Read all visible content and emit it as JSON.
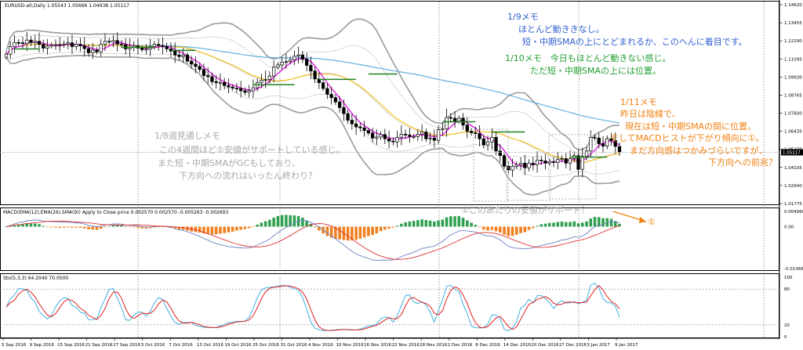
{
  "colors": {
    "bull": "#ffffff",
    "bear": "#000000",
    "sma_short": "#e020e0",
    "sma_mid": "#f0c020",
    "sma_long": "#60b0e0",
    "bb": "#9a9a9a",
    "hist_pos": "#30a050",
    "hist_neg": "#f08020",
    "stoch_main": "#40b0e0",
    "stoch_signal": "#e02020",
    "note_blue": "#3060d0",
    "note_green": "#20a030",
    "note_gray": "#a8a8a8",
    "note_orange": "#f08010",
    "level_green": "#208020"
  },
  "header": {
    "main": "EURUSD-a0,Daily  1.05543 1.05666 1.04938 1.05117",
    "macd": "MACD(EMA(12),EMA(26),SMA(9)) Apply to Close price 0.002570 0.002570 -0.005263 -0.002693",
    "stoch": "Sto(5,3,3) 64.2040 70.0500"
  },
  "notes": {
    "n19_title": "1/9メモ",
    "n19_l1": "ほとんど動ききなし。",
    "n19_l2": "短・中期SMAの上にとどまれるか、このへんに着目です。",
    "n110": "1/10メモ　今日もほとんど動きない感じ。",
    "n110_l2": "ただ短・中期SMAの上には位置。",
    "n111_title": "1/11メモ",
    "n111_l1": "昨日は陰線で、",
    "n111_l2": "現在は短・中期SMAの間に位置。",
    "n111_l3": "そしてMACDヒストが下がり傾向に①。",
    "n111_l4": "まだ方向感はつかみづらいですが、",
    "n111_l5": "下方向への前兆？",
    "n18_title": "1/8週見通しメモ",
    "n18_l1": "この4週間ほど①安値がサポートしている感じ。",
    "n18_l2": "また短・中期SMAがGCもしており、",
    "n18_l3": "下方向への流れはいったん終わり？",
    "support": "①このあたりの安値がサポート？",
    "macd_marker": "①"
  },
  "chart_data": {
    "type": "candlestick",
    "symbol": "EURUSD-a0",
    "timeframe": "Daily",
    "x_tick_labels": [
      "5 Sep 2016",
      "9 Sep 2016",
      "15 Sep 2016",
      "21 Sep 2016",
      "27 Sep 2016",
      "3 Oct 2016",
      "7 Oct 2016",
      "13 Oct 2016",
      "19 Oct 2016",
      "25 Oct 2016",
      "31 Oct 2016",
      "4 Nov 2016",
      "10 Nov 2016",
      "16 Nov 2016",
      "22 Nov 2016",
      "28 Nov 2016",
      "2 Dec 2016",
      "8 Dec 2016",
      "14 Dec 2016",
      "20 Dec 2016",
      "27 Dec 2016",
      "3 Jan 2017",
      "9 Jan 2017"
    ],
    "y_tick_labels": [
      "1.14620",
      "1.13455",
      "1.12290",
      "1.11095",
      "1.09930",
      "1.08765",
      "1.07600",
      "1.06435",
      "1.05270",
      "1.04105",
      "1.02940",
      "1.01775"
    ],
    "price_scale": [
      1.0175,
      1.148
    ],
    "current_price": "1.05117",
    "close": [
      1.1155,
      1.1205,
      1.1232,
      1.123,
      1.1225,
      1.1248,
      1.1232,
      1.124,
      1.122,
      1.1195,
      1.1208,
      1.1215,
      1.1218,
      1.1217,
      1.1222,
      1.123,
      1.1205,
      1.122,
      1.121,
      1.1192,
      1.1165,
      1.1182,
      1.117,
      1.122,
      1.124,
      1.1235,
      1.1245,
      1.1222,
      1.1218,
      1.119,
      1.12,
      1.121,
      1.1195,
      1.1185,
      1.1188,
      1.1205,
      1.122,
      1.1212,
      1.1205,
      1.119,
      1.1175,
      1.115,
      1.114,
      1.115,
      1.111,
      1.109,
      1.1075,
      1.1055,
      1.1015,
      1.1008,
      1.0975,
      1.0968,
      1.097,
      1.095,
      1.094,
      1.0932,
      1.093,
      1.0915,
      1.0905,
      1.0915,
      1.0935,
      1.097,
      1.0985,
      1.099,
      1.1012,
      1.107,
      1.1085,
      1.1102,
      1.1108,
      1.1118,
      1.1142,
      1.115,
      1.1122,
      1.1082,
      1.1045,
      1.0993,
      1.0968,
      1.093,
      1.0892,
      1.087,
      1.0842,
      1.0805,
      1.0765,
      1.0722,
      1.0698,
      1.0678,
      1.0672,
      1.0655,
      1.0638,
      1.0605,
      1.0612,
      1.0628,
      1.06,
      1.0585,
      1.058,
      1.061,
      1.063,
      1.0625,
      1.0615,
      1.0615,
      1.063,
      1.0645,
      1.06,
      1.0605,
      1.059,
      1.066,
      1.0665,
      1.074,
      1.0735,
      1.0715,
      1.0735,
      1.069,
      1.065,
      1.064,
      1.0635,
      1.06,
      1.056,
      1.058,
      1.061,
      1.052,
      1.049,
      1.042,
      1.0395,
      1.042,
      1.043,
      1.044,
      1.041,
      1.044,
      1.043,
      1.046,
      1.0455,
      1.044,
      1.045,
      1.0445,
      1.0465,
      1.047,
      1.044,
      1.047,
      1.049,
      1.04,
      1.0485,
      1.052,
      1.061,
      1.0605,
      1.0568,
      1.0552,
      1.06,
      1.0589,
      1.055,
      1.0512
    ],
    "macd_scale": [
      -0.01366,
      0.004968
    ],
    "macd_ticks": [
      "0.004968",
      "0.00",
      "-0.01366"
    ],
    "stoch_ticks": [
      "100",
      "80",
      "20",
      "0"
    ],
    "stoch_levels": [
      80,
      20
    ]
  }
}
